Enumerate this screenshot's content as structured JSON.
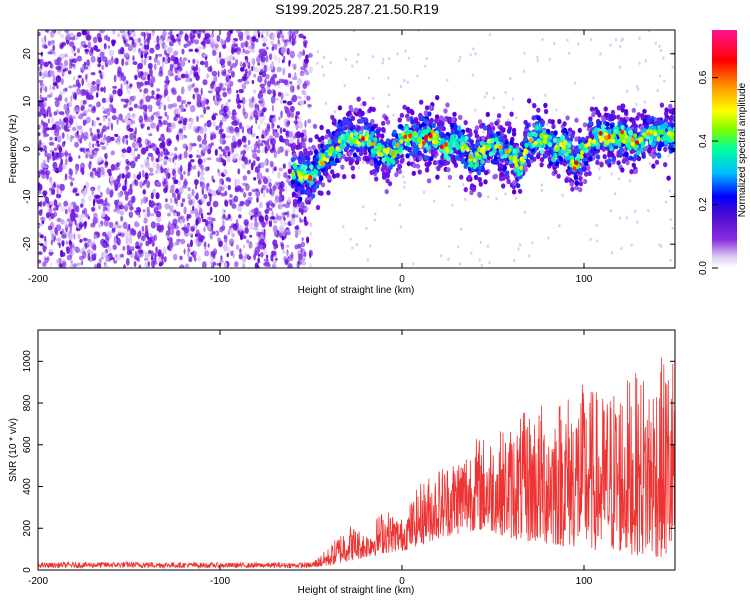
{
  "title": "S199.2025.287.21.50.R19",
  "chart_data": [
    {
      "type": "heatmap",
      "xlabel": "Height of straight line (km)",
      "ylabel": "Frequency (Hz)",
      "xlim": [
        -200,
        150
      ],
      "ylim": [
        -25,
        25
      ],
      "xticks": [
        "-200",
        "-100",
        "0",
        "100"
      ],
      "yticks": [
        "-20",
        "-10",
        "0",
        "10",
        "20"
      ],
      "colorbar": {
        "label": "Normalized spectral amplitude",
        "range": [
          0,
          0.75
        ],
        "ticks": [
          "0.0",
          "0.2",
          "0.4",
          "0.6"
        ],
        "colors": [
          "#ffffff",
          "#8a2be2",
          "#4b0082",
          "#0000ff",
          "#00bfff",
          "#00ff7f",
          "#7cfc00",
          "#ffff00",
          "#ff8c00",
          "#ff0000",
          "#ff1493"
        ]
      },
      "noise_region_x": [
        -200,
        -50
      ],
      "signal_track": {
        "x": [
          -60,
          -50,
          -45,
          -40,
          -35,
          -30,
          -25,
          -20,
          -15,
          -10,
          -5,
          0,
          5,
          10,
          15,
          20,
          25,
          30,
          35,
          40,
          45,
          50,
          55,
          60,
          65,
          70,
          75,
          80,
          85,
          90,
          95,
          100,
          105,
          110,
          115,
          120,
          125,
          130,
          135,
          140,
          145,
          150
        ],
        "y": [
          -5,
          -6,
          -3,
          -1,
          1,
          3,
          2,
          3,
          0,
          -1,
          -1,
          2,
          3,
          2,
          3,
          2,
          0,
          3,
          0,
          -2,
          0,
          1,
          0,
          -1,
          -4,
          2,
          2,
          2,
          0,
          1,
          -4,
          0,
          2,
          3,
          2,
          3,
          2,
          1,
          3,
          3,
          3,
          3
        ]
      }
    },
    {
      "type": "line",
      "xlabel": "Height of straight line (km)",
      "ylabel": "SNR (10 * v/v)",
      "xlim": [
        -200,
        150
      ],
      "ylim": [
        0,
        1150
      ],
      "xticks": [
        "-200",
        "-100",
        "0",
        "100"
      ],
      "yticks": [
        "0",
        "200",
        "400",
        "600",
        "800",
        "1000"
      ],
      "color": "#ee3333",
      "envelope": {
        "x": [
          -200,
          -150,
          -100,
          -50,
          -40,
          -30,
          -20,
          -10,
          0,
          10,
          20,
          30,
          40,
          50,
          60,
          70,
          80,
          90,
          100,
          110,
          120,
          130,
          140,
          150
        ],
        "upper": [
          35,
          40,
          35,
          35,
          110,
          230,
          180,
          300,
          250,
          420,
          500,
          560,
          640,
          660,
          700,
          780,
          820,
          860,
          900,
          850,
          920,
          950,
          1000,
          1080
        ],
        "lower": [
          10,
          10,
          10,
          10,
          20,
          40,
          60,
          80,
          90,
          120,
          150,
          170,
          190,
          180,
          150,
          130,
          120,
          110,
          100,
          90,
          80,
          70,
          60,
          50
        ]
      }
    }
  ]
}
